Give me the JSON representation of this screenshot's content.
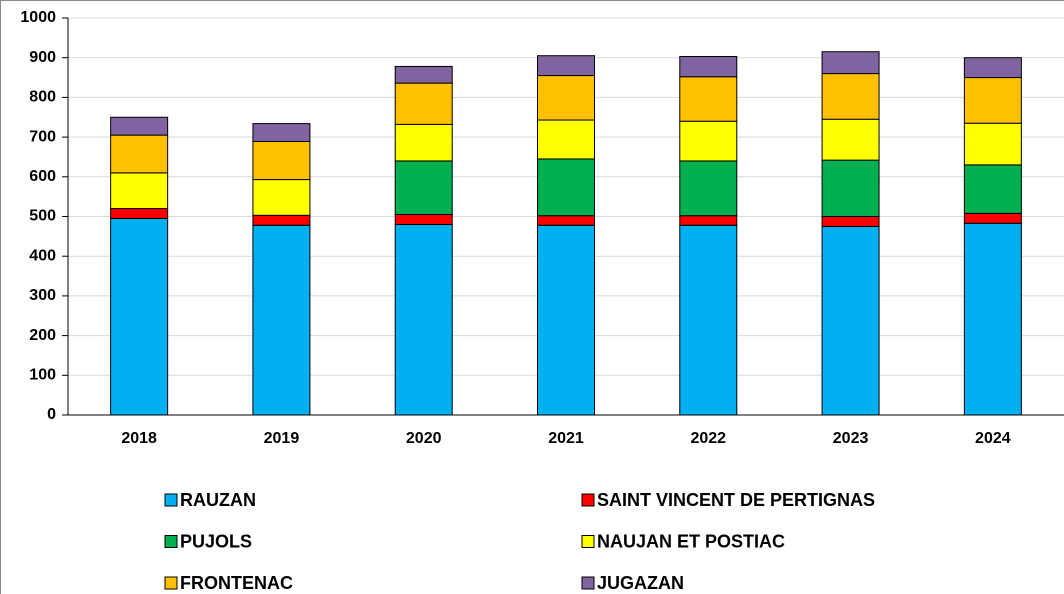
{
  "chart_data": {
    "type": "stacked_bar",
    "categories": [
      "2018",
      "2019",
      "2020",
      "2021",
      "2022",
      "2023",
      "2024"
    ],
    "series": [
      {
        "name": "RAUZAN",
        "color": "#00b0f0",
        "values": [
          495,
          478,
          480,
          478,
          478,
          475,
          483
        ]
      },
      {
        "name": "SAINT VINCENT DE PERTIGNAS",
        "color": "#ff0000",
        "values": [
          25,
          25,
          25,
          24,
          24,
          25,
          25
        ]
      },
      {
        "name": "PUJOLS",
        "color": "#00b050",
        "values": [
          0,
          0,
          135,
          143,
          138,
          142,
          122
        ]
      },
      {
        "name": "NAUJAN ET POSTIAC",
        "color": "#ffff00",
        "values": [
          90,
          90,
          92,
          98,
          100,
          103,
          105
        ]
      },
      {
        "name": "FRONTENAC",
        "color": "#ffc000",
        "values": [
          95,
          96,
          104,
          112,
          112,
          115,
          115
        ]
      },
      {
        "name": "JUGAZAN",
        "color": "#8064a2",
        "values": [
          45,
          45,
          42,
          50,
          51,
          55,
          50
        ]
      }
    ],
    "ylim": [
      0,
      1000
    ],
    "yticks": [
      0,
      100,
      200,
      300,
      400,
      500,
      600,
      700,
      800,
      900,
      1000
    ],
    "grid": true,
    "legend": "bottom"
  }
}
